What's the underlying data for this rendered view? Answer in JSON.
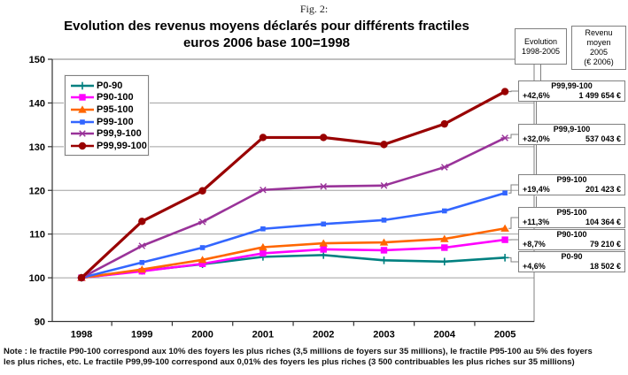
{
  "figure": {
    "caption": "Fig. 2:"
  },
  "title": {
    "line1": "Evolution des revenus moyens déclarés pour différents fractiles",
    "line2": "euros 2006 base 100=1998"
  },
  "right_panel": {
    "evolution_header": "Evolution\n1998-2005",
    "revenu_header": "Revenu\nmoyen\n2005\n(€ 2006)",
    "boxes": [
      {
        "name": "P99,99-100",
        "evolution": "+42,6%",
        "revenu": "1 499 654 €"
      },
      {
        "name": "P99,9-100",
        "evolution": "+32,0%",
        "revenu": "537 043 €"
      },
      {
        "name": "P99-100",
        "evolution": "+19,4%",
        "revenu": "201 423 €"
      },
      {
        "name": "P95-100",
        "evolution": "+11,3%",
        "revenu": "104 364 €"
      },
      {
        "name": "P90-100",
        "evolution": "+8,7%",
        "revenu": "79 210 €"
      },
      {
        "name": "P0-90",
        "evolution": "+4,6%",
        "revenu": "18 502 €"
      }
    ]
  },
  "chart_data": {
    "type": "line",
    "title": "Evolution des revenus moyens déclarés pour différents fractiles euros 2006 base 100=1998",
    "x": [
      1998,
      1999,
      2000,
      2001,
      2002,
      2003,
      2004,
      2005
    ],
    "ylim": [
      90,
      150
    ],
    "ytick_step": 10,
    "grid": true,
    "legend_position": "top-left",
    "series": [
      {
        "name": "P0-90",
        "color": "#008080",
        "marker": "plus",
        "values": [
          100,
          101.6,
          103.1,
          104.8,
          105.2,
          104.0,
          103.7,
          104.6
        ]
      },
      {
        "name": "P90-100",
        "color": "#FF00FF",
        "marker": "square",
        "values": [
          100,
          101.5,
          103.2,
          105.6,
          106.5,
          106.3,
          106.9,
          108.7
        ]
      },
      {
        "name": "P95-100",
        "color": "#FF6600",
        "marker": "triangle",
        "values": [
          100,
          101.9,
          104.1,
          107.0,
          107.9,
          108.1,
          108.9,
          111.3
        ]
      },
      {
        "name": "P99-100",
        "color": "#3366FF",
        "marker": "square-small",
        "values": [
          100,
          103.5,
          106.9,
          111.2,
          112.3,
          113.2,
          115.3,
          119.4
        ]
      },
      {
        "name": "P99,9-100",
        "color": "#993399",
        "marker": "asterisk",
        "values": [
          100,
          107.3,
          112.8,
          120.1,
          120.9,
          121.1,
          125.3,
          132.0
        ]
      },
      {
        "name": "P99,99-100",
        "color": "#990000",
        "marker": "circle",
        "values": [
          100,
          112.9,
          119.9,
          132.1,
          132.1,
          130.5,
          135.2,
          142.6
        ]
      }
    ]
  },
  "note": {
    "line1": "Note : le fractile P90-100 correspond aux 10% des foyers les plus riches (3,5 millions de foyers sur 35 millions), le fractile P95-100 au 5% des foyers",
    "line2": "les plus riches, etc. Le fractile P99,99-100 correspond aux 0,01% des foyers les plus riches (3 500 contribuables les plus riches sur 35 millions)"
  }
}
